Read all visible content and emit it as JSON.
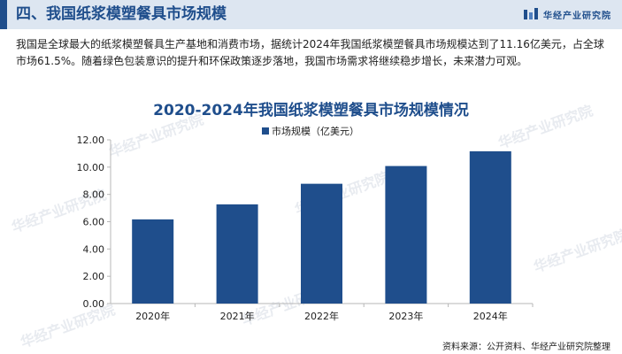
{
  "header": {
    "title": "四、我国纸浆模塑餐具市场规模",
    "brand": "华经产业研究院"
  },
  "intro": "我国是全球最大的纸浆模塑餐具生产基地和消费市场，据统计2024年我国纸浆模塑餐具市场规模达到了11.16亿美元，占全球市场61.5%。随着绿色包装意识的提升和环保政策逐步落地，我国市场需求将继续稳步增长，未来潜力可观。",
  "watermark": "华经产业研究院",
  "source": "资料来源：公开资料、华经产业研究院整理",
  "colors": {
    "accent": "#1f4e8c",
    "bar": "#1f4e8c",
    "header_bg": "#dde6f1"
  },
  "chart_data": {
    "type": "bar",
    "title": "2020-2024年我国纸浆模塑餐具市场规模情况",
    "categories": [
      "2020年",
      "2021年",
      "2022年",
      "2023年",
      "2024年"
    ],
    "series": [
      {
        "name": "市场规模（亿美元）",
        "values": [
          6.17,
          7.27,
          8.78,
          10.08,
          11.16
        ]
      }
    ],
    "y_ticks": [
      "0.00",
      "2.00",
      "4.00",
      "6.00",
      "8.00",
      "10.00",
      "12.00"
    ],
    "ylim": [
      0,
      12
    ],
    "xlabel": "",
    "ylabel": "",
    "legend_position": "top",
    "grid": false
  }
}
